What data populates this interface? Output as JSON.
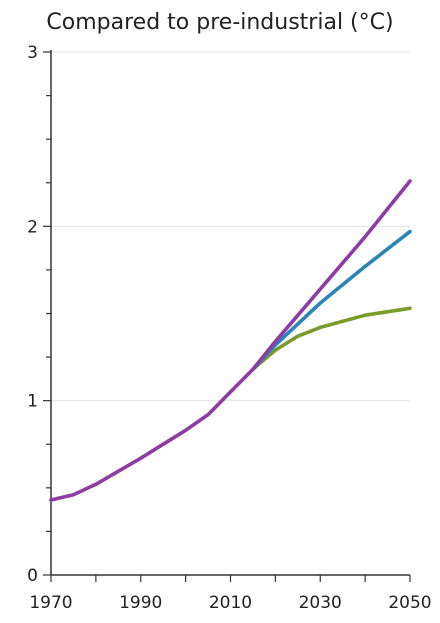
{
  "chart_data": {
    "type": "line",
    "title": "Compared to pre-industrial (°C)",
    "xlabel": "",
    "ylabel": "",
    "xlim": [
      1970,
      2050
    ],
    "ylim": [
      0,
      3
    ],
    "x_ticks": [
      1970,
      1990,
      2010,
      2030,
      2050
    ],
    "y_ticks": [
      0,
      1,
      2,
      3
    ],
    "grid": "horizontal",
    "legend": "none",
    "series": [
      {
        "color": "#8e3ba3",
        "points": [
          [
            1970,
            0.43
          ],
          [
            1975,
            0.46
          ],
          [
            1980,
            0.52
          ],
          [
            1990,
            0.67
          ],
          [
            2000,
            0.83
          ],
          [
            2005,
            0.92
          ],
          [
            2010,
            1.05
          ],
          [
            2015,
            1.18
          ],
          [
            2020,
            1.34
          ],
          [
            2030,
            1.64
          ],
          [
            2040,
            1.94
          ],
          [
            2050,
            2.26
          ]
        ]
      },
      {
        "color": "#2b84b6",
        "points": [
          [
            2015,
            1.18
          ],
          [
            2020,
            1.32
          ],
          [
            2030,
            1.56
          ],
          [
            2040,
            1.77
          ],
          [
            2050,
            1.97
          ]
        ]
      },
      {
        "color": "#7b9a2c",
        "points": [
          [
            2015,
            1.18
          ],
          [
            2020,
            1.29
          ],
          [
            2025,
            1.37
          ],
          [
            2030,
            1.42
          ],
          [
            2040,
            1.49
          ],
          [
            2050,
            1.53
          ]
        ]
      }
    ]
  }
}
